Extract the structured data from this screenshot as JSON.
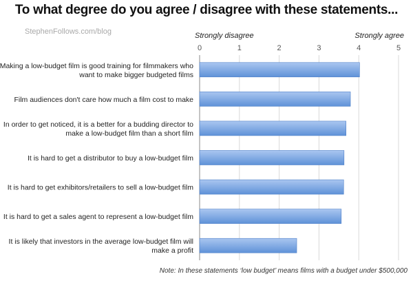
{
  "title": "To what degree do you agree / disagree with these statements...",
  "source": "StephenFollows.com/blog",
  "note": "Note: In these statements ‘low budget’ means films with a budget under $500,000",
  "colors": {
    "bar_top": "#aac6f0",
    "bar_bottom": "#5f92d8",
    "bar_stroke": "#4f80c8",
    "grid": "#d9d9d9",
    "axis": "#555555",
    "text": "#222222"
  },
  "chart_data": {
    "type": "bar",
    "orientation": "horizontal",
    "title": "To what degree do you agree / disagree with these statements...",
    "xlabel_left": "Strongly disagree",
    "xlabel_right": "Strongly agree",
    "xlim": [
      0,
      5
    ],
    "xticks": [
      0,
      1,
      2,
      3,
      4,
      5
    ],
    "grid": true,
    "categories": [
      [
        "Making a low-budget film is good training for filmmakers who",
        "want to make bigger budgeted films"
      ],
      [
        "Film audiences don't care how much a film cost to make"
      ],
      [
        "In order to get noticed, it is a better for a budding director to",
        "make a low-budget film than a short film"
      ],
      [
        "It is hard to get a distributor to buy a low-budget film"
      ],
      [
        "It is hard to get exhibitors/retailers to sell a low-budget film"
      ],
      [
        "It is hard to get a sales agent to represent a low-budget film"
      ],
      [
        "It is likely that investors in the average low-budget film will",
        "make a profit"
      ]
    ],
    "values": [
      4.02,
      3.79,
      3.68,
      3.63,
      3.62,
      3.56,
      2.44
    ]
  }
}
